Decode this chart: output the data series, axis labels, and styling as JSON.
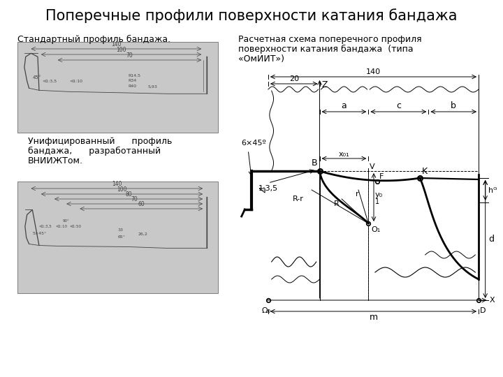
{
  "title": "Поперечные профили поверхности катания бандажа",
  "left_top_label": "Стандартный профиль бандажа.",
  "right_label_line1": "Расчетная схема поперечного профиля",
  "right_label_line2": "поверхности катания бандажа  (типа",
  "right_label_line3": "«ОмИИТ»)",
  "unified_line1": "Унифицированный      профиль",
  "unified_line2": "бандажа,      разработанный",
  "unified_line3": "ВНИИЖТом.",
  "bg_color": "#ffffff",
  "dim_140": "140",
  "dim_20": "20",
  "label_6x45": "6×45º",
  "label_1_3_5": "1:3,5",
  "label_a": "a",
  "label_b": "b",
  "label_c": "c",
  "label_d": "d",
  "label_hr": "hᴳ",
  "label_Z": "Z",
  "label_B": "B",
  "label_x01": "x₀₁",
  "label_V": "V",
  "label_F": "F",
  "label_K": "K",
  "label_R": "R",
  "label_r": "r",
  "label_Rr": "R-r",
  "label_O1": "O₁",
  "label_y0": "y₀",
  "label_sub1": "1",
  "label_O0": "Ω₀",
  "label_m": "m",
  "label_D": "D",
  "label_X": "X"
}
